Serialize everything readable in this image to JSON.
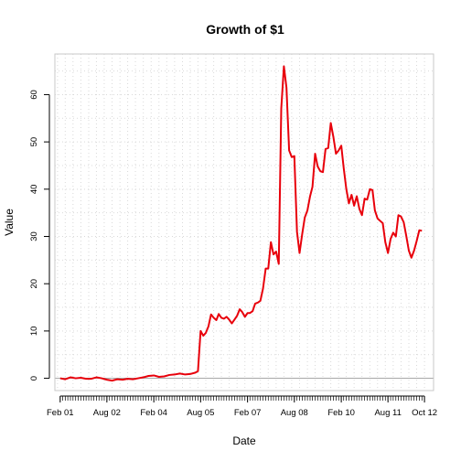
{
  "chart_data": {
    "type": "line",
    "title": "Growth of $1",
    "xlabel": "Date",
    "ylabel": "Value",
    "xlim": [
      "2000-12-01",
      "2013-01-15"
    ],
    "ylim": [
      -2.6,
      68.6
    ],
    "yticks": [
      0,
      10,
      20,
      30,
      40,
      50,
      60
    ],
    "xticks": [
      {
        "label": "Feb 01",
        "date": "2001-02-01"
      },
      {
        "label": "Aug 02",
        "date": "2002-08-01"
      },
      {
        "label": "Feb 04",
        "date": "2004-02-01"
      },
      {
        "label": "Aug 05",
        "date": "2005-08-01"
      },
      {
        "label": "Feb 07",
        "date": "2007-02-01"
      },
      {
        "label": "Aug 08",
        "date": "2008-08-01"
      },
      {
        "label": "Feb 10",
        "date": "2010-02-01"
      },
      {
        "label": "Aug 11",
        "date": "2011-08-01"
      },
      {
        "label": "Oct 12",
        "date": "2012-10-01"
      }
    ],
    "grid": true,
    "reference_line": 0,
    "series": [
      {
        "color": "#e8000b",
        "points": [
          [
            "2001-02-01",
            0.0
          ],
          [
            "2001-04-01",
            -0.2
          ],
          [
            "2001-06-01",
            0.2
          ],
          [
            "2001-08-01",
            0.0
          ],
          [
            "2001-10-01",
            0.1
          ],
          [
            "2001-12-01",
            -0.1
          ],
          [
            "2002-02-01",
            -0.1
          ],
          [
            "2002-04-01",
            0.2
          ],
          [
            "2002-06-01",
            0.0
          ],
          [
            "2002-08-01",
            -0.3
          ],
          [
            "2002-10-01",
            -0.5
          ],
          [
            "2002-12-01",
            -0.2
          ],
          [
            "2003-02-01",
            -0.3
          ],
          [
            "2003-04-01",
            -0.1
          ],
          [
            "2003-06-01",
            -0.2
          ],
          [
            "2003-08-01",
            0.0
          ],
          [
            "2003-10-01",
            0.2
          ],
          [
            "2003-12-01",
            0.5
          ],
          [
            "2004-02-01",
            0.6
          ],
          [
            "2004-04-01",
            0.3
          ],
          [
            "2004-06-01",
            0.4
          ],
          [
            "2004-08-01",
            0.7
          ],
          [
            "2004-10-01",
            0.8
          ],
          [
            "2004-12-01",
            1.0
          ],
          [
            "2005-02-01",
            0.8
          ],
          [
            "2005-04-01",
            0.9
          ],
          [
            "2005-06-01",
            1.2
          ],
          [
            "2005-07-01",
            1.5
          ],
          [
            "2005-08-01",
            10.0
          ],
          [
            "2005-09-01",
            9.0
          ],
          [
            "2005-10-01",
            9.6
          ],
          [
            "2005-11-01",
            11.0
          ],
          [
            "2005-12-01",
            13.5
          ],
          [
            "2006-01-01",
            12.8
          ],
          [
            "2006-02-01",
            12.3
          ],
          [
            "2006-03-01",
            13.6
          ],
          [
            "2006-04-01",
            12.8
          ],
          [
            "2006-05-01",
            12.6
          ],
          [
            "2006-06-01",
            13.0
          ],
          [
            "2006-07-01",
            12.4
          ],
          [
            "2006-08-01",
            11.6
          ],
          [
            "2006-09-01",
            12.4
          ],
          [
            "2006-10-01",
            13.2
          ],
          [
            "2006-11-01",
            14.6
          ],
          [
            "2006-12-01",
            14.0
          ],
          [
            "2007-01-01",
            13.0
          ],
          [
            "2007-02-01",
            13.8
          ],
          [
            "2007-03-01",
            13.8
          ],
          [
            "2007-04-01",
            14.2
          ],
          [
            "2007-05-01",
            15.8
          ],
          [
            "2007-06-01",
            16.0
          ],
          [
            "2007-07-01",
            16.4
          ],
          [
            "2007-08-01",
            19.0
          ],
          [
            "2007-09-01",
            23.2
          ],
          [
            "2007-10-01",
            23.2
          ],
          [
            "2007-11-01",
            28.8
          ],
          [
            "2007-12-01",
            26.2
          ],
          [
            "2008-01-01",
            26.8
          ],
          [
            "2008-02-01",
            24.2
          ],
          [
            "2008-03-01",
            57.0
          ],
          [
            "2008-04-01",
            66.0
          ],
          [
            "2008-05-01",
            61.5
          ],
          [
            "2008-06-01",
            48.2
          ],
          [
            "2008-07-01",
            46.8
          ],
          [
            "2008-08-01",
            47.0
          ],
          [
            "2008-09-01",
            31.0
          ],
          [
            "2008-10-01",
            26.5
          ],
          [
            "2008-11-01",
            30.5
          ],
          [
            "2008-12-01",
            34.0
          ],
          [
            "2009-01-01",
            35.5
          ],
          [
            "2009-02-01",
            38.5
          ],
          [
            "2009-03-01",
            40.5
          ],
          [
            "2009-04-01",
            47.5
          ],
          [
            "2009-05-01",
            44.8
          ],
          [
            "2009-06-01",
            43.8
          ],
          [
            "2009-07-01",
            43.6
          ],
          [
            "2009-08-01",
            48.5
          ],
          [
            "2009-09-01",
            48.7
          ],
          [
            "2009-10-01",
            54.0
          ],
          [
            "2009-11-01",
            51.0
          ],
          [
            "2009-12-01",
            47.5
          ],
          [
            "2010-01-01",
            48.2
          ],
          [
            "2010-02-01",
            49.2
          ],
          [
            "2010-03-01",
            44.5
          ],
          [
            "2010-04-01",
            40.0
          ],
          [
            "2010-05-01",
            37.0
          ],
          [
            "2010-06-01",
            38.8
          ],
          [
            "2010-07-01",
            36.5
          ],
          [
            "2010-08-01",
            38.5
          ],
          [
            "2010-09-01",
            35.8
          ],
          [
            "2010-10-01",
            34.5
          ],
          [
            "2010-11-01",
            38.0
          ],
          [
            "2010-12-01",
            37.8
          ],
          [
            "2011-01-01",
            40.0
          ],
          [
            "2011-02-01",
            39.8
          ],
          [
            "2011-03-01",
            35.5
          ],
          [
            "2011-04-01",
            33.8
          ],
          [
            "2011-05-01",
            33.3
          ],
          [
            "2011-06-01",
            32.8
          ],
          [
            "2011-07-01",
            28.8
          ],
          [
            "2011-08-01",
            26.5
          ],
          [
            "2011-09-01",
            29.5
          ],
          [
            "2011-10-01",
            30.8
          ],
          [
            "2011-11-01",
            30.0
          ],
          [
            "2011-12-01",
            34.5
          ],
          [
            "2012-01-01",
            34.2
          ],
          [
            "2012-02-01",
            33.0
          ],
          [
            "2012-03-01",
            30.2
          ],
          [
            "2012-04-01",
            27.0
          ],
          [
            "2012-05-01",
            25.5
          ],
          [
            "2012-06-01",
            27.0
          ],
          [
            "2012-07-01",
            29.0
          ],
          [
            "2012-08-01",
            31.3
          ],
          [
            "2012-09-01",
            31.2
          ]
        ]
      }
    ]
  }
}
